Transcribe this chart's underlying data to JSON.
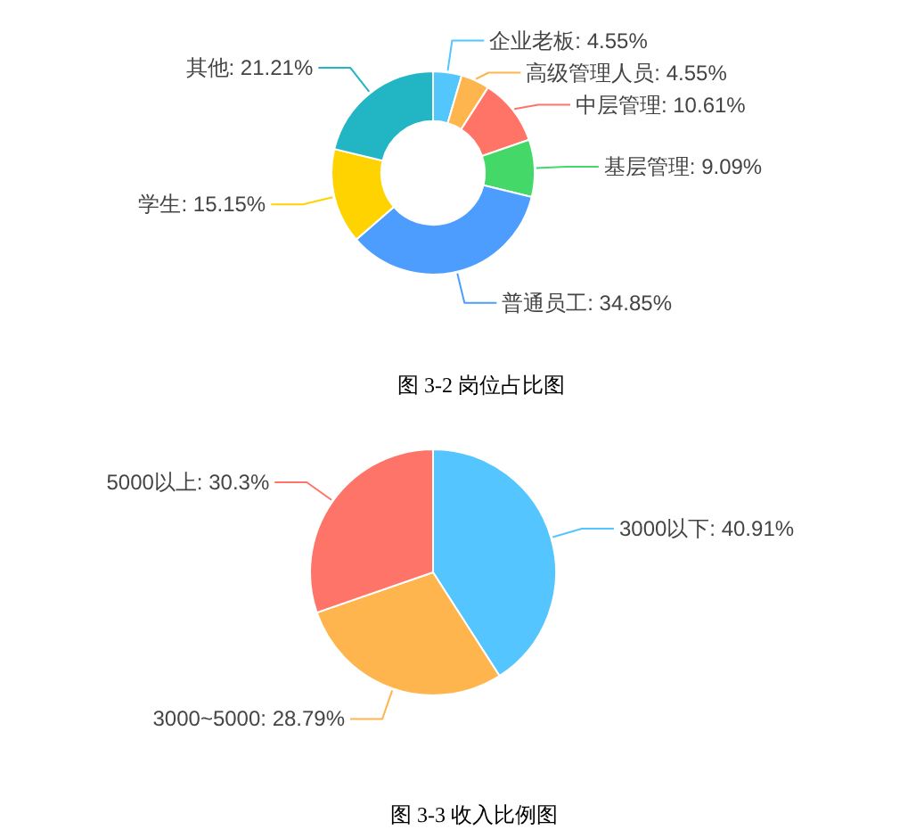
{
  "chart_data": [
    {
      "type": "donut",
      "categories": [
        "企业老板",
        "高级管理人员",
        "中层管理",
        "基层管理",
        "普通员工",
        "学生",
        "其他"
      ],
      "values": [
        4.55,
        4.55,
        10.61,
        9.09,
        34.85,
        15.15,
        21.21
      ],
      "colors": [
        "#53c6fc",
        "#ffb54d",
        "#ff7466",
        "#43d868",
        "#4d9dff",
        "#ffd300",
        "#22b5c4"
      ],
      "value_labels": [
        "4.55%",
        "4.55%",
        "10.61%",
        "9.09%",
        "34.85%",
        "15.15%",
        "21.21%"
      ],
      "annotations": [
        "图 3-2 岗位占比图"
      ]
    },
    {
      "type": "pie",
      "categories": [
        "3000以下",
        "3000~5000",
        "5000以上"
      ],
      "values": [
        40.91,
        28.79,
        30.3
      ],
      "colors": [
        "#54c5fe",
        "#ffb54e",
        "#ff7468"
      ],
      "value_labels": [
        "40.91%",
        "28.79%",
        "30.3%"
      ],
      "annotations": [
        "图 3-3 收入比例图"
      ]
    }
  ]
}
